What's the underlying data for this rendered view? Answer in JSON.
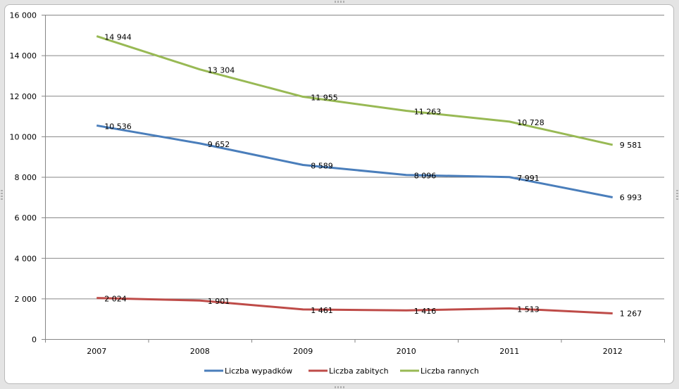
{
  "chart_data": {
    "type": "line",
    "title": "",
    "xlabel": "",
    "ylabel": "",
    "categories": [
      "2007",
      "2008",
      "2009",
      "2010",
      "2011",
      "2012"
    ],
    "ylim": [
      0,
      16000
    ],
    "yticks": [
      0,
      2000,
      4000,
      6000,
      8000,
      10000,
      12000,
      14000,
      16000
    ],
    "ytick_labels": [
      "0",
      "2 000",
      "4 000",
      "6 000",
      "8 000",
      "10 000",
      "12 000",
      "14 000",
      "16 000"
    ],
    "grid": true,
    "legend_position": "bottom",
    "series": [
      {
        "name": "Liczba wypadków",
        "color": "#4a7ebb",
        "values": [
          10536,
          9652,
          8589,
          8096,
          7991,
          6993
        ],
        "labels": [
          "10 536",
          "9 652",
          "8 589",
          "8 096",
          "7 991",
          "6 993"
        ]
      },
      {
        "name": "Liczba zabitych",
        "color": "#be4b48",
        "values": [
          2024,
          1901,
          1461,
          1416,
          1513,
          1267
        ],
        "labels": [
          "2 024",
          "1 901",
          "1 461",
          "1 416",
          "1 513",
          "1 267"
        ]
      },
      {
        "name": "Liczba rannych",
        "color": "#98b954",
        "values": [
          14944,
          13304,
          11955,
          11263,
          10728,
          9581
        ],
        "labels": [
          "14 944",
          "13 304",
          "11 955",
          "11 263",
          "10 728",
          "9 581"
        ]
      }
    ]
  }
}
